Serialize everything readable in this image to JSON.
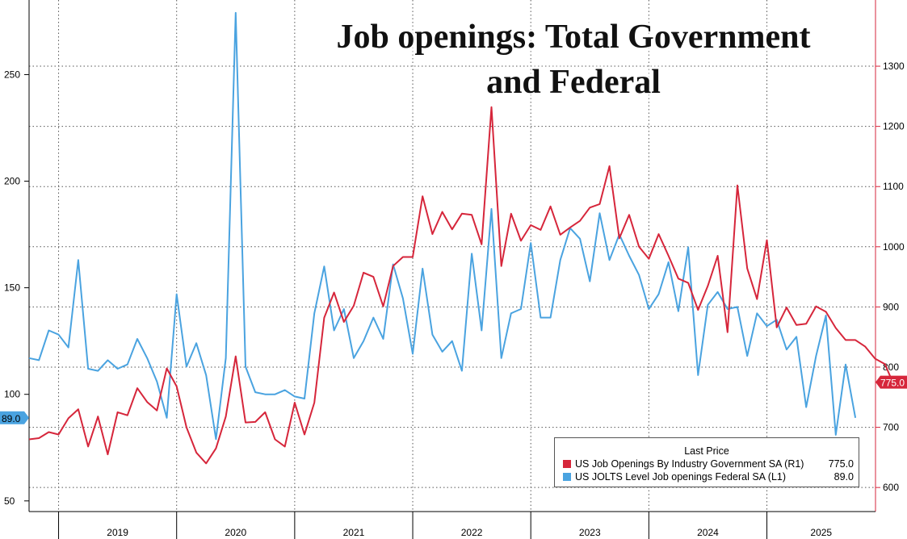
{
  "chart_data": {
    "type": "line",
    "title_lines": [
      "Job openings: Total Government",
      "and Federal"
    ],
    "legend_header": "Last Price",
    "x_tick_labels": [
      "2019",
      "2020",
      "2021",
      "2022",
      "2023",
      "2024",
      "2025"
    ],
    "left_axis": {
      "ticks": [
        50,
        100,
        150,
        200,
        250
      ],
      "range": [
        45,
        285
      ]
    },
    "right_axis": {
      "ticks": [
        600,
        700,
        800,
        900,
        1000,
        1100,
        1200,
        1300
      ],
      "range": [
        560,
        1410
      ]
    },
    "series": [
      {
        "name": "US Job Openings By Industry Government SA (R1)",
        "axis": "right",
        "color": "#d6263b",
        "last_value": "775.0",
        "start_year": 2018.75,
        "step_years": 0.083333,
        "values": [
          680,
          682,
          692,
          688,
          715,
          730,
          668,
          718,
          655,
          725,
          720,
          765,
          742,
          728,
          798,
          768,
          700,
          658,
          640,
          665,
          718,
          818,
          708,
          709,
          725,
          680,
          668,
          741,
          688,
          741,
          882,
          924,
          875,
          902,
          957,
          950,
          901,
          968,
          983,
          983,
          1084,
          1021,
          1058,
          1029,
          1055,
          1053,
          1004,
          1232,
          968,
          1055,
          1010,
          1036,
          1028,
          1067,
          1020,
          1032,
          1043,
          1065,
          1071,
          1134,
          1014,
          1053,
          1000,
          980,
          1021,
          985,
          947,
          940,
          895,
          935,
          985,
          858,
          1102,
          964,
          913,
          1011,
          866,
          899,
          870,
          872,
          901,
          892,
          865,
          845,
          845,
          834,
          814,
          805,
          767,
          781,
          775
        ]
      },
      {
        "name": "US JOLTS Level Job openings Federal SA (L1)",
        "axis": "left",
        "color": "#4aa3e0",
        "last_value": "89.0",
        "start_year": 2018.75,
        "step_years": 0.083333,
        "values": [
          117,
          116,
          130,
          128,
          122,
          163,
          112,
          111,
          116,
          112,
          114,
          126,
          117,
          106,
          89,
          147,
          113,
          124,
          109,
          79,
          117,
          279,
          113,
          101,
          100,
          100,
          102,
          99,
          98,
          138,
          160,
          130,
          140,
          117,
          125,
          136,
          126,
          161,
          145,
          119,
          159,
          128,
          120,
          125,
          111,
          166,
          130,
          187,
          117,
          138,
          140,
          171,
          136,
          136,
          163,
          178,
          173,
          153,
          185,
          163,
          175,
          165,
          156,
          140,
          147,
          162,
          139,
          169,
          109,
          142,
          148,
          140,
          141,
          118,
          138,
          132,
          135,
          121,
          127,
          94,
          118,
          137,
          81,
          114,
          89
        ]
      }
    ]
  }
}
